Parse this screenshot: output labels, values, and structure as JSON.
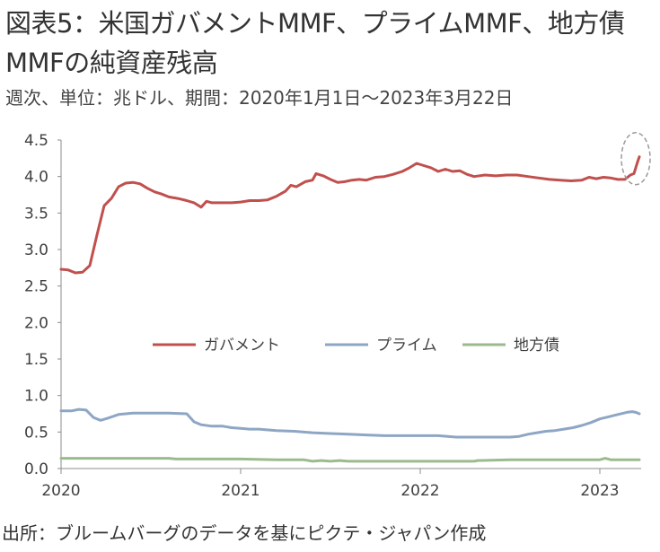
{
  "title_line1": "図表5：米国ガバメントMMF、プライムMMF、地方債",
  "title_line2": "MMFの純資産残高",
  "subtitle": "週次、単位：兆ドル、期間：2020年1月1日～2023年3月22日",
  "source": "出所：ブルームバーグのデータを基にピクテ・ジャパン作成",
  "chart_data": {
    "type": "line",
    "x_ticks": [
      "2020",
      "2021",
      "2022",
      "2023"
    ],
    "y_ticks": [
      "0.0",
      "0.5",
      "1.0",
      "1.5",
      "2.0",
      "2.5",
      "3.0",
      "3.5",
      "4.0",
      "4.5"
    ],
    "ylim": [
      0,
      4.5
    ],
    "xlim": [
      2020.0,
      2023.23
    ],
    "grid": false,
    "legend": "center",
    "annotation": "dashed ellipse around latest government MMF surge (March 2023)",
    "series": [
      {
        "name": "ガバメント",
        "color": "#C0504D",
        "points": [
          [
            2020.0,
            2.73
          ],
          [
            2020.04,
            2.72
          ],
          [
            2020.08,
            2.68
          ],
          [
            2020.12,
            2.69
          ],
          [
            2020.16,
            2.78
          ],
          [
            2020.2,
            3.2
          ],
          [
            2020.24,
            3.6
          ],
          [
            2020.28,
            3.7
          ],
          [
            2020.32,
            3.86
          ],
          [
            2020.36,
            3.91
          ],
          [
            2020.4,
            3.92
          ],
          [
            2020.44,
            3.9
          ],
          [
            2020.48,
            3.84
          ],
          [
            2020.52,
            3.79
          ],
          [
            2020.56,
            3.76
          ],
          [
            2020.6,
            3.72
          ],
          [
            2020.65,
            3.7
          ],
          [
            2020.7,
            3.67
          ],
          [
            2020.74,
            3.64
          ],
          [
            2020.78,
            3.58
          ],
          [
            2020.81,
            3.66
          ],
          [
            2020.84,
            3.64
          ],
          [
            2020.9,
            3.64
          ],
          [
            2020.95,
            3.64
          ],
          [
            2021.0,
            3.65
          ],
          [
            2021.05,
            3.67
          ],
          [
            2021.1,
            3.67
          ],
          [
            2021.15,
            3.68
          ],
          [
            2021.2,
            3.73
          ],
          [
            2021.25,
            3.8
          ],
          [
            2021.28,
            3.88
          ],
          [
            2021.31,
            3.86
          ],
          [
            2021.36,
            3.93
          ],
          [
            2021.4,
            3.95
          ],
          [
            2021.42,
            4.04
          ],
          [
            2021.46,
            4.01
          ],
          [
            2021.5,
            3.96
          ],
          [
            2021.54,
            3.92
          ],
          [
            2021.58,
            3.93
          ],
          [
            2021.62,
            3.95
          ],
          [
            2021.66,
            3.96
          ],
          [
            2021.7,
            3.95
          ],
          [
            2021.75,
            3.99
          ],
          [
            2021.8,
            4.0
          ],
          [
            2021.85,
            4.03
          ],
          [
            2021.9,
            4.07
          ],
          [
            2021.94,
            4.12
          ],
          [
            2021.98,
            4.18
          ],
          [
            2022.02,
            4.15
          ],
          [
            2022.06,
            4.12
          ],
          [
            2022.1,
            4.07
          ],
          [
            2022.14,
            4.1
          ],
          [
            2022.18,
            4.07
          ],
          [
            2022.22,
            4.08
          ],
          [
            2022.26,
            4.03
          ],
          [
            2022.3,
            4.0
          ],
          [
            2022.36,
            4.02
          ],
          [
            2022.42,
            4.01
          ],
          [
            2022.48,
            4.02
          ],
          [
            2022.54,
            4.02
          ],
          [
            2022.6,
            4.0
          ],
          [
            2022.66,
            3.98
          ],
          [
            2022.72,
            3.96
          ],
          [
            2022.78,
            3.95
          ],
          [
            2022.84,
            3.94
          ],
          [
            2022.9,
            3.95
          ],
          [
            2022.94,
            3.99
          ],
          [
            2022.98,
            3.97
          ],
          [
            2023.02,
            3.99
          ],
          [
            2023.06,
            3.98
          ],
          [
            2023.1,
            3.96
          ],
          [
            2023.14,
            3.96
          ],
          [
            2023.17,
            4.02
          ],
          [
            2023.19,
            4.04
          ],
          [
            2023.21,
            4.2
          ],
          [
            2023.22,
            4.27
          ]
        ]
      },
      {
        "name": "プライム",
        "color": "#8EA6C4",
        "points": [
          [
            2020.0,
            0.79
          ],
          [
            2020.06,
            0.79
          ],
          [
            2020.1,
            0.81
          ],
          [
            2020.14,
            0.8
          ],
          [
            2020.18,
            0.7
          ],
          [
            2020.22,
            0.66
          ],
          [
            2020.26,
            0.69
          ],
          [
            2020.32,
            0.74
          ],
          [
            2020.4,
            0.76
          ],
          [
            2020.5,
            0.76
          ],
          [
            2020.6,
            0.76
          ],
          [
            2020.7,
            0.75
          ],
          [
            2020.74,
            0.64
          ],
          [
            2020.78,
            0.6
          ],
          [
            2020.84,
            0.58
          ],
          [
            2020.9,
            0.58
          ],
          [
            2020.95,
            0.56
          ],
          [
            2021.0,
            0.55
          ],
          [
            2021.05,
            0.54
          ],
          [
            2021.1,
            0.54
          ],
          [
            2021.2,
            0.52
          ],
          [
            2021.3,
            0.51
          ],
          [
            2021.4,
            0.49
          ],
          [
            2021.5,
            0.48
          ],
          [
            2021.6,
            0.47
          ],
          [
            2021.7,
            0.46
          ],
          [
            2021.8,
            0.45
          ],
          [
            2021.9,
            0.45
          ],
          [
            2022.0,
            0.45
          ],
          [
            2022.1,
            0.45
          ],
          [
            2022.2,
            0.43
          ],
          [
            2022.3,
            0.43
          ],
          [
            2022.4,
            0.43
          ],
          [
            2022.5,
            0.43
          ],
          [
            2022.55,
            0.44
          ],
          [
            2022.6,
            0.47
          ],
          [
            2022.65,
            0.49
          ],
          [
            2022.7,
            0.51
          ],
          [
            2022.75,
            0.52
          ],
          [
            2022.8,
            0.54
          ],
          [
            2022.85,
            0.56
          ],
          [
            2022.9,
            0.59
          ],
          [
            2022.95,
            0.63
          ],
          [
            2023.0,
            0.68
          ],
          [
            2023.05,
            0.71
          ],
          [
            2023.1,
            0.74
          ],
          [
            2023.15,
            0.77
          ],
          [
            2023.18,
            0.78
          ],
          [
            2023.2,
            0.77
          ],
          [
            2023.22,
            0.75
          ]
        ]
      },
      {
        "name": "地方債",
        "color": "#9BBB8E",
        "points": [
          [
            2020.0,
            0.14
          ],
          [
            2020.2,
            0.14
          ],
          [
            2020.4,
            0.14
          ],
          [
            2020.6,
            0.14
          ],
          [
            2020.64,
            0.13
          ],
          [
            2020.8,
            0.13
          ],
          [
            2021.0,
            0.13
          ],
          [
            2021.2,
            0.12
          ],
          [
            2021.35,
            0.12
          ],
          [
            2021.4,
            0.1
          ],
          [
            2021.45,
            0.11
          ],
          [
            2021.5,
            0.1
          ],
          [
            2021.55,
            0.11
          ],
          [
            2021.6,
            0.1
          ],
          [
            2021.8,
            0.1
          ],
          [
            2022.0,
            0.1
          ],
          [
            2022.2,
            0.1
          ],
          [
            2022.3,
            0.1
          ],
          [
            2022.32,
            0.11
          ],
          [
            2022.5,
            0.12
          ],
          [
            2022.7,
            0.12
          ],
          [
            2022.9,
            0.12
          ],
          [
            2023.0,
            0.12
          ],
          [
            2023.03,
            0.14
          ],
          [
            2023.06,
            0.12
          ],
          [
            2023.15,
            0.12
          ],
          [
            2023.22,
            0.12
          ]
        ]
      }
    ]
  }
}
